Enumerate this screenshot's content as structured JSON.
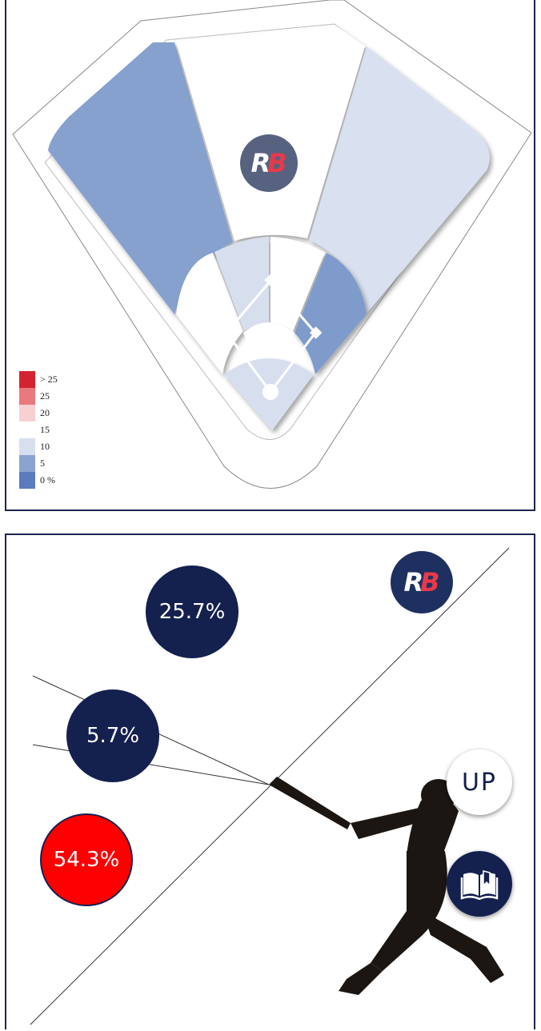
{
  "field_chart": {
    "brand": {
      "logo_letters": [
        "R",
        "B"
      ]
    },
    "legend": [
      {
        "label": "> 25",
        "color": "#d42330"
      },
      {
        "label": "25",
        "color": "#e9787f"
      },
      {
        "label": "20",
        "color": "#f7d0d2"
      },
      {
        "label": "15",
        "color": "#ffffff"
      },
      {
        "label": "10",
        "color": "#d7dfef"
      },
      {
        "label": "5",
        "color": "#8aa3d0"
      },
      {
        "label": "0 %",
        "color": "#5a7bbd"
      }
    ],
    "zones": {
      "outfield_left": "#87a1cf",
      "outfield_center": "#ffffff",
      "outfield_right": "#d9e0ef",
      "infield_left": "#ffffff",
      "infield_center_left": "#d7dfef",
      "infield_center_right": "#ffffff",
      "infield_right": "#7f9bcc",
      "home_area": "#d7dfef"
    }
  },
  "launch_angle": {
    "brand": {
      "logo_letters": [
        "R",
        "B"
      ]
    },
    "bubbles": [
      {
        "value": "25.7%",
        "color": "#14204e"
      },
      {
        "value": "5.7%",
        "color": "#14204e"
      },
      {
        "value": "54.3%",
        "color": "#ff0000"
      }
    ]
  },
  "actions": {
    "up_label": "UP",
    "guide_icon": "open-book-icon"
  }
}
